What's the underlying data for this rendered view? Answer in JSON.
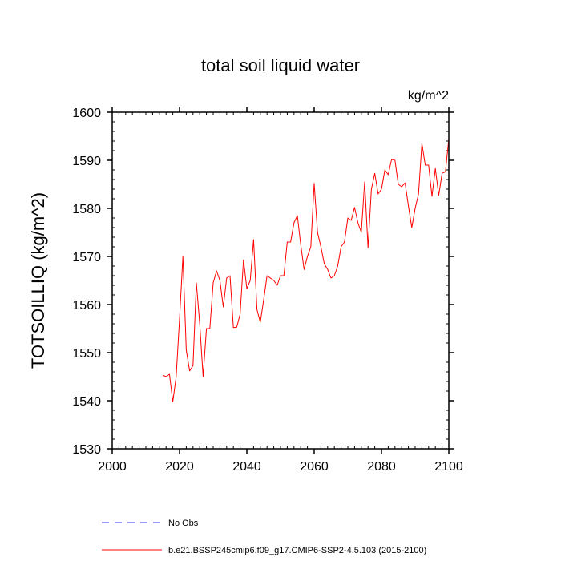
{
  "chart_data": {
    "type": "line",
    "title": "total soil liquid water",
    "units_label": "kg/m^2",
    "ylabel": "TOTSOILLIQ  (kg/m^2)",
    "xlabel": "",
    "xlim": [
      2000,
      2100
    ],
    "ylim": [
      1530,
      1600
    ],
    "x_ticks": [
      2000,
      2020,
      2040,
      2060,
      2080,
      2100
    ],
    "y_ticks": [
      1530,
      1540,
      1550,
      1560,
      1570,
      1580,
      1590,
      1600
    ],
    "x_minor_step": 2,
    "y_minor_step": 2,
    "series": [
      {
        "name": "b.e21.BSSP245cmip6.f09_g17.CMIP6-SSP2-4.5.103 (2015-2100)",
        "color": "#ff0000",
        "style": "solid",
        "x": [
          2015,
          2016,
          2017,
          2018,
          2019,
          2020,
          2021,
          2022,
          2023,
          2024,
          2025,
          2026,
          2027,
          2028,
          2029,
          2030,
          2031,
          2032,
          2033,
          2034,
          2035,
          2036,
          2037,
          2038,
          2039,
          2040,
          2041,
          2042,
          2043,
          2044,
          2045,
          2046,
          2047,
          2048,
          2049,
          2050,
          2051,
          2052,
          2053,
          2054,
          2055,
          2056,
          2057,
          2058,
          2059,
          2060,
          2061,
          2062,
          2063,
          2064,
          2065,
          2066,
          2067,
          2068,
          2069,
          2070,
          2071,
          2072,
          2073,
          2074,
          2075,
          2076,
          2077,
          2078,
          2079,
          2080,
          2081,
          2082,
          2083,
          2084,
          2085,
          2086,
          2087,
          2088,
          2089,
          2090,
          2091,
          2092,
          2093,
          2094,
          2095,
          2096,
          2097,
          2098,
          2099,
          2100
        ],
        "values": [
          1545.3,
          1545.0,
          1545.5,
          1539.8,
          1545.0,
          1557.0,
          1570.0,
          1550.5,
          1546.2,
          1547.3,
          1564.5,
          1556.0,
          1545.0,
          1555.0,
          1555.0,
          1564.5,
          1567.0,
          1565.0,
          1559.5,
          1565.5,
          1566.0,
          1555.2,
          1555.3,
          1558.0,
          1569.3,
          1563.3,
          1565.0,
          1573.5,
          1559.0,
          1556.3,
          1561.0,
          1566.0,
          1565.5,
          1565.0,
          1564.0,
          1566.0,
          1566.0,
          1573.0,
          1573.0,
          1577.0,
          1578.5,
          1572.5,
          1567.3,
          1570.0,
          1572.0,
          1585.2,
          1575.0,
          1572.0,
          1568.5,
          1567.3,
          1565.5,
          1566.0,
          1568.0,
          1572.0,
          1573.0,
          1578.0,
          1577.5,
          1580.2,
          1577.0,
          1575.0,
          1585.5,
          1571.8,
          1584.0,
          1587.3,
          1583.0,
          1584.0,
          1588.0,
          1587.0,
          1590.2,
          1590.0,
          1585.0,
          1584.5,
          1585.3,
          1580.5,
          1576.0,
          1580.0,
          1583.0,
          1593.5,
          1589.0,
          1589.0,
          1582.5,
          1588.3,
          1582.7,
          1587.3,
          1587.6,
          1594.5
        ]
      },
      {
        "name": "No Obs",
        "color": "#3333ff",
        "style": "dashed",
        "x": [],
        "values": []
      }
    ],
    "legend": [
      {
        "label": "No Obs",
        "color": "#3333ff",
        "style": "dashed"
      },
      {
        "label": "b.e21.BSSP245cmip6.f09_g17.CMIP6-SSP2-4.5.103 (2015-2100)",
        "color": "#ff0000",
        "style": "solid"
      }
    ],
    "legend_position": "bottom",
    "grid": false
  }
}
